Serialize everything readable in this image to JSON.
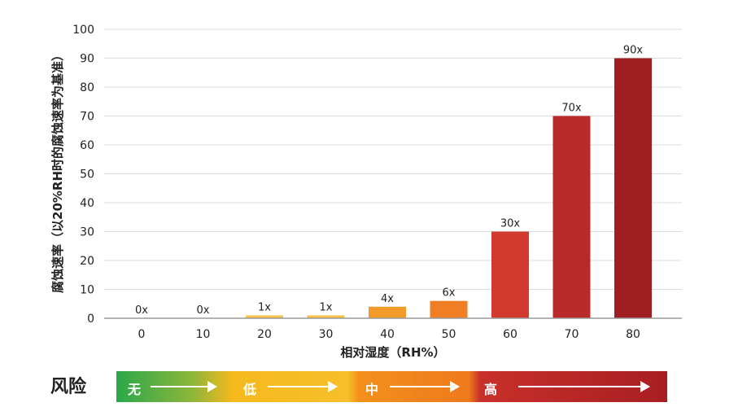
{
  "chart_data": {
    "type": "bar",
    "categories": [
      "0",
      "10",
      "20",
      "30",
      "40",
      "50",
      "60",
      "70",
      "80"
    ],
    "values": [
      0,
      0,
      1,
      1,
      4,
      6,
      30,
      70,
      90
    ],
    "data_labels": [
      "0x",
      "0x",
      "1x",
      "1x",
      "4x",
      "6x",
      "30x",
      "70x",
      "90x"
    ],
    "xlabel": "相对湿度（RH%）",
    "ylabel": "腐蚀速率（以20%RH时的腐蚀速率为基准）",
    "ylim": [
      0,
      100
    ],
    "yticks": [
      0,
      10,
      20,
      30,
      40,
      50,
      60,
      70,
      80,
      90,
      100
    ],
    "grid": true,
    "bar_colors": [
      "#f2b73a",
      "#f2b73a",
      "#f6c244",
      "#f6c244",
      "#f29a2a",
      "#ef7e24",
      "#d23a30",
      "#b92a2a",
      "#9e1e22"
    ]
  },
  "risk": {
    "title": "风险",
    "segments": [
      {
        "label": "无"
      },
      {
        "label": "低"
      },
      {
        "label": "中"
      },
      {
        "label": "高"
      }
    ]
  }
}
